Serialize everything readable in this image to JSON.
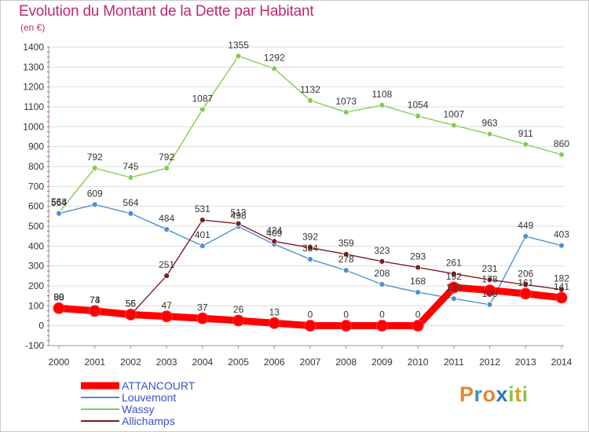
{
  "title": "Evolution du Montant de la Dette par Habitant",
  "subtitle": "(en €)",
  "logo_text": "Proxiti",
  "chart_data": {
    "type": "line",
    "title": "Evolution du Montant de la Dette par Habitant",
    "ylabel": "(en €)",
    "xlabel": "",
    "x": [
      2000,
      2001,
      2002,
      2003,
      2004,
      2005,
      2006,
      2007,
      2008,
      2009,
      2010,
      2011,
      2012,
      2013,
      2014
    ],
    "ylim": [
      -100,
      1400
    ],
    "yticks": [
      -100,
      0,
      100,
      200,
      300,
      400,
      500,
      600,
      700,
      800,
      900,
      1000,
      1100,
      1200,
      1300,
      1400
    ],
    "grid": "horizontal",
    "legend": "bottom-left",
    "series": [
      {
        "name": "Wassy",
        "color": "#86cc52",
        "values": [
          568,
          792,
          745,
          792,
          1087,
          1355,
          1292,
          1132,
          1073,
          1108,
          1054,
          1007,
          963,
          911,
          860
        ],
        "labels": [
          "568",
          "792",
          "745",
          "792",
          "1087",
          "1355",
          "1292",
          "1132",
          "1073",
          "1108",
          "1054",
          "1007",
          "963",
          "911",
          "860"
        ]
      },
      {
        "name": "Louvemont",
        "color": "#4f90cc",
        "values": [
          564,
          609,
          564,
          484,
          401,
          498,
          409,
          334,
          278,
          208,
          168,
          136,
          106,
          449,
          403
        ],
        "labels": [
          "564",
          "609",
          "564",
          "484",
          "401",
          "498",
          "409",
          "334",
          "278",
          "208",
          "168",
          "136",
          "106",
          "449",
          "403"
        ]
      },
      {
        "name": "Allichamps",
        "color": "#7a1e1e",
        "values": [
          90,
          73,
          55,
          251,
          531,
          513,
          424,
          392,
          359,
          323,
          293,
          261,
          231,
          206,
          182
        ],
        "labels": [
          "90",
          "73",
          "55",
          "251",
          "531",
          "513",
          "424",
          "392",
          "359",
          "323",
          "293",
          "261",
          "231",
          "206",
          "182"
        ]
      },
      {
        "name": "ATTANCOURT",
        "color": "#ff0000",
        "values": [
          88,
          74,
          56,
          47,
          37,
          26,
          13,
          0,
          0,
          0,
          0,
          192,
          178,
          161,
          141
        ],
        "labels": [
          "88",
          "74",
          "56",
          "47",
          "37",
          "26",
          "13",
          "0",
          "0",
          "0",
          "0",
          "192",
          "178",
          "161",
          "141"
        ]
      }
    ]
  },
  "legend_items": [
    {
      "name": "ATTANCOURT",
      "color": "#ff0000",
      "width": 9
    },
    {
      "name": "Louvemont",
      "color": "#4f90cc",
      "width": 2
    },
    {
      "name": "Wassy",
      "color": "#86cc52",
      "width": 2
    },
    {
      "name": "Allichamps",
      "color": "#7a1e1e",
      "width": 2
    }
  ]
}
